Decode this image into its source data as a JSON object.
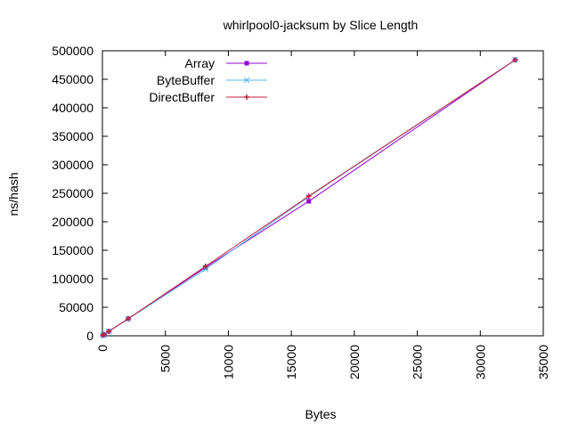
{
  "chart_data": {
    "type": "line",
    "title": "whirlpool0-jacksum by Slice Length",
    "xlabel": "Bytes",
    "ylabel": "ns/hash",
    "xlim": [
      0,
      35000
    ],
    "ylim": [
      0,
      500000
    ],
    "x_ticks": [
      0,
      5000,
      10000,
      15000,
      20000,
      25000,
      30000,
      35000
    ],
    "y_ticks": [
      0,
      50000,
      100000,
      150000,
      200000,
      250000,
      300000,
      350000,
      400000,
      450000,
      500000
    ],
    "grid": false,
    "legend_position": "top-left",
    "series": [
      {
        "name": "Array",
        "color": "#9400d3",
        "marker": "square",
        "points": [
          [
            32,
            1000
          ],
          [
            128,
            2200
          ],
          [
            512,
            7800
          ],
          [
            2048,
            30000
          ],
          [
            8192,
            120000
          ],
          [
            16384,
            236000
          ],
          [
            32768,
            484000
          ]
        ]
      },
      {
        "name": "ByteBuffer",
        "color": "#56b4e9",
        "marker": "x",
        "points": [
          [
            32,
            1000
          ],
          [
            128,
            2200
          ],
          [
            512,
            7800
          ],
          [
            2048,
            29500
          ],
          [
            8192,
            117000
          ],
          [
            16384,
            244000
          ],
          [
            32768,
            484000
          ]
        ]
      },
      {
        "name": "DirectBuffer",
        "color": "#c0203c",
        "marker": "plus",
        "points": [
          [
            32,
            1000
          ],
          [
            128,
            2200
          ],
          [
            512,
            7800
          ],
          [
            2048,
            30000
          ],
          [
            8192,
            122000
          ],
          [
            16384,
            245000
          ],
          [
            32768,
            484000
          ]
        ]
      }
    ]
  }
}
